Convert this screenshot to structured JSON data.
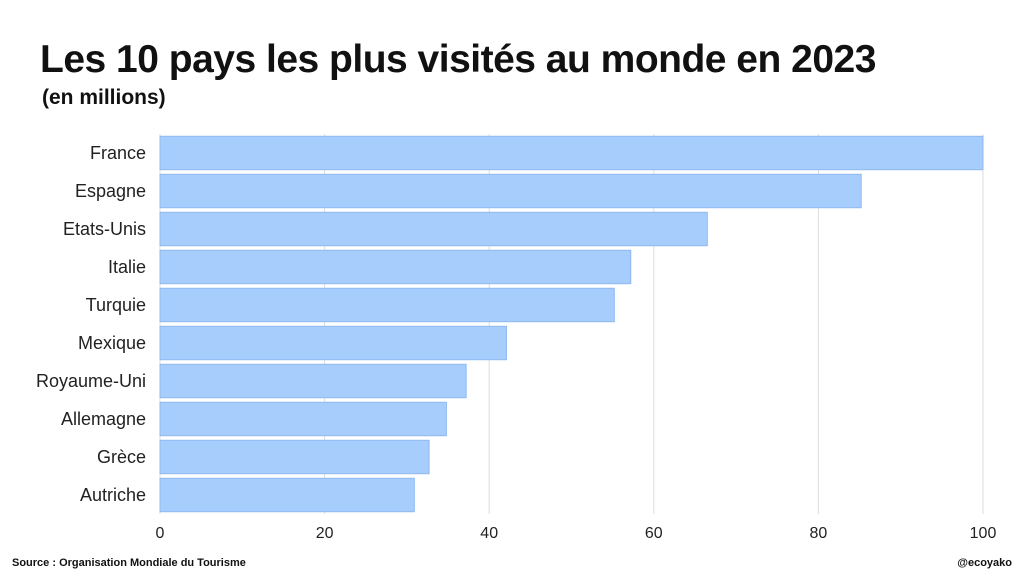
{
  "chart_data": {
    "type": "bar",
    "orientation": "horizontal",
    "title": "Les 10 pays les plus visités au monde en 2023",
    "subtitle": "(en millions)",
    "categories": [
      "France",
      "Espagne",
      "Etats-Unis",
      "Italie",
      "Turquie",
      "Mexique",
      "Royaume-Uni",
      "Allemagne",
      "Grèce",
      "Autriche"
    ],
    "values": [
      100,
      85.2,
      66.5,
      57.2,
      55.2,
      42.1,
      37.2,
      34.8,
      32.7,
      30.9
    ],
    "xlim": [
      0,
      100
    ],
    "xticks": [
      0,
      20,
      40,
      60,
      80,
      100
    ],
    "grid": "vertical",
    "bar_color": "#a6cdfb",
    "bar_border_color": "#8fbaf0",
    "grid_color": "#dddddd"
  },
  "footer": {
    "source": "Source : Organisation Mondiale du Tourisme",
    "handle": "@ecoyako"
  }
}
